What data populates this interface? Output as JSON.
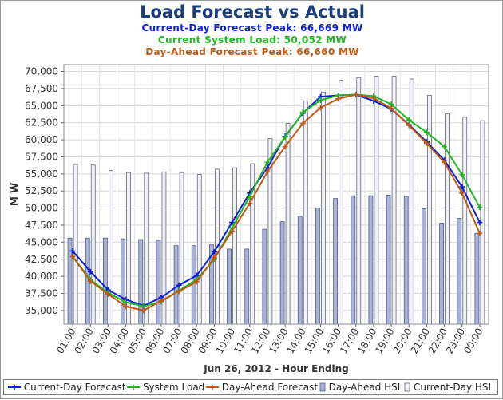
{
  "chart_data": {
    "type": "bar+line",
    "title": "Load Forecast vs Actual",
    "subtitles": [
      {
        "text": "Current-Day Forecast Peak:  66,669 MW",
        "color": "#0a1fd6"
      },
      {
        "text": "Current System Load:  50,052 MW",
        "color": "#21b821"
      },
      {
        "text": "Day-Ahead Forecast Peak:  66,660 MW",
        "color": "#c05a14"
      }
    ],
    "xlabel": "Jun 26, 2012 - Hour Ending",
    "ylabel": "M W",
    "ylim": [
      33000,
      71000
    ],
    "yticks": [
      35000,
      37500,
      40000,
      42500,
      45000,
      47500,
      50000,
      52500,
      55000,
      57500,
      60000,
      62500,
      65000,
      67500,
      70000
    ],
    "ytick_labels": [
      "35,000",
      "37,500",
      "40,000",
      "42,500",
      "45,000",
      "47,500",
      "50,000",
      "52,500",
      "55,000",
      "57,500",
      "60,000",
      "62,500",
      "65,000",
      "67,500",
      "70,000"
    ],
    "categories": [
      "01:00",
      "02:00",
      "03:00",
      "04:00",
      "05:00",
      "06:00",
      "07:00",
      "08:00",
      "09:00",
      "10:00",
      "11:00",
      "12:00",
      "13:00",
      "14:00",
      "15:00",
      "16:00",
      "17:00",
      "18:00",
      "19:00",
      "20:00",
      "21:00",
      "22:00",
      "23:00",
      "00:00"
    ],
    "grid": true,
    "legend_position": "bottom",
    "bar_series": [
      {
        "name": "Day-Ahead HSL",
        "color": "#a9b3d6",
        "stroke": "#4d5a8a",
        "values": [
          45600,
          45600,
          45600,
          45500,
          45400,
          45300,
          44500,
          44500,
          44700,
          44000,
          44000,
          46900,
          48000,
          48800,
          50000,
          51400,
          51800,
          51800,
          51900,
          51700,
          49900,
          47800,
          48500,
          46300
        ]
      },
      {
        "name": "Current-Day HSL",
        "color": "#f1f2f7",
        "stroke": "#60657a",
        "values": [
          56400,
          56300,
          55500,
          55200,
          55100,
          55300,
          55200,
          54900,
          55700,
          55900,
          56500,
          60200,
          62400,
          65700,
          67000,
          68700,
          69100,
          69300,
          69300,
          68900,
          66500,
          63800,
          63300,
          62800
        ]
      }
    ],
    "line_series": [
      {
        "name": "Current-Day Forecast",
        "color": "#0a1fd6",
        "marker": "plus",
        "values": [
          43700,
          40700,
          38000,
          36600,
          35700,
          36900,
          38700,
          40100,
          43600,
          47900,
          52200,
          55900,
          60500,
          63900,
          66300,
          66500,
          66600,
          65700,
          64500,
          62200,
          59700,
          57000,
          53100,
          47900
        ]
      },
      {
        "name": "System Load",
        "color": "#21b821",
        "marker": "plus",
        "values": [
          42900,
          39500,
          37600,
          36200,
          35600,
          36300,
          37900,
          39500,
          42500,
          47100,
          51700,
          56700,
          60400,
          64000,
          65800,
          66500,
          66600,
          66400,
          65200,
          62900,
          61100,
          59000,
          54900,
          50100
        ]
      },
      {
        "name": "Day-Ahead Forecast",
        "color": "#c05a14",
        "marker": "plus",
        "values": [
          42900,
          39300,
          37400,
          35600,
          35000,
          36400,
          37800,
          39200,
          42700,
          46600,
          50700,
          55300,
          59000,
          62400,
          64700,
          66000,
          66600,
          66100,
          64600,
          62100,
          59500,
          56700,
          52200,
          46300
        ]
      }
    ],
    "legend_order": [
      "Current-Day Forecast",
      "System Load",
      "Day-Ahead Forecast",
      "Day-Ahead HSL",
      "Current-Day HSL"
    ]
  }
}
